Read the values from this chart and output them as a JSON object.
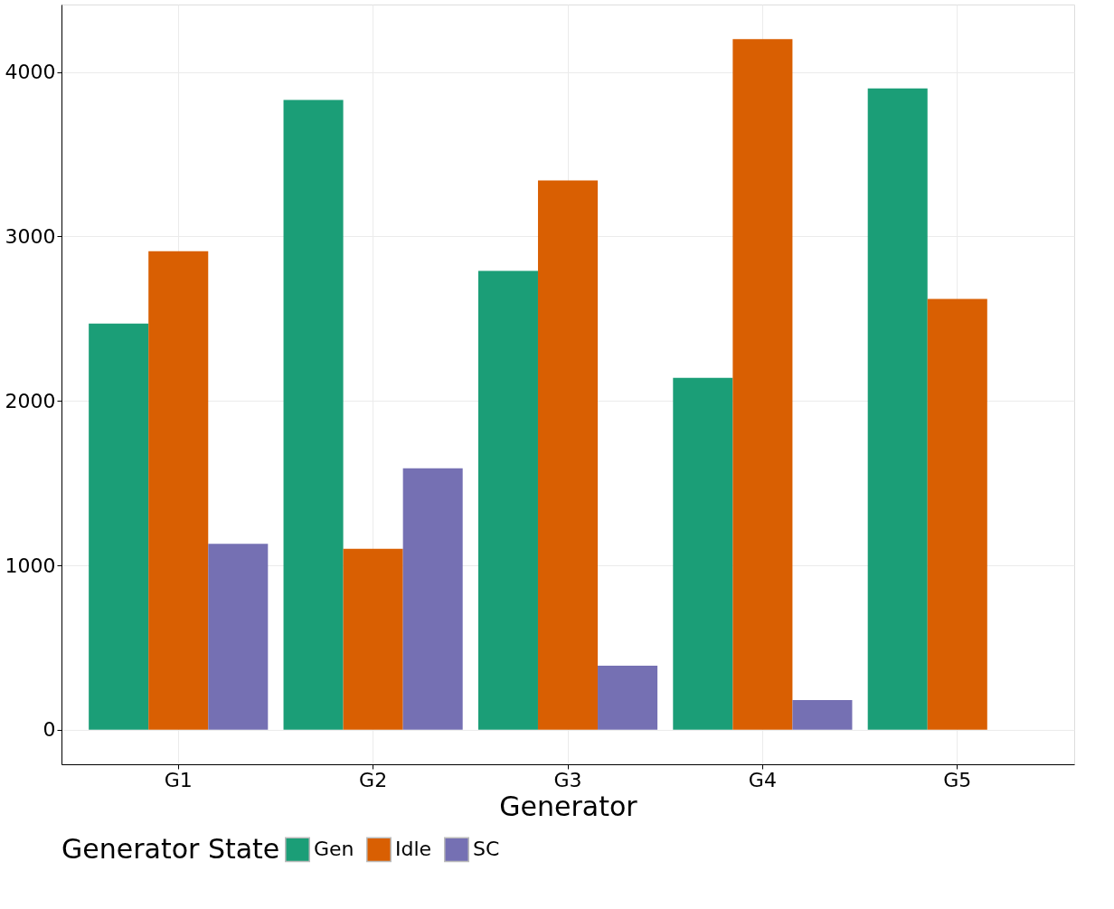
{
  "chart_data": {
    "type": "bar",
    "xlabel": "Generator",
    "legend_title": "Generator State",
    "categories": [
      "G1",
      "G2",
      "G3",
      "G4",
      "G5"
    ],
    "series": [
      {
        "name": "Gen",
        "color": "#1b9e77",
        "values": [
          2470,
          3830,
          2790,
          2140,
          3900
        ]
      },
      {
        "name": "Idle",
        "color": "#d95f02",
        "values": [
          2910,
          1100,
          3340,
          4200,
          2620
        ]
      },
      {
        "name": "SC",
        "color": "#7570b3",
        "values": [
          1130,
          1590,
          390,
          180,
          null
        ]
      }
    ],
    "ylim": [
      -210,
      4410
    ],
    "yticks": [
      0,
      1000,
      2000,
      3000,
      4000
    ],
    "grid": true,
    "legend": "bottom"
  }
}
